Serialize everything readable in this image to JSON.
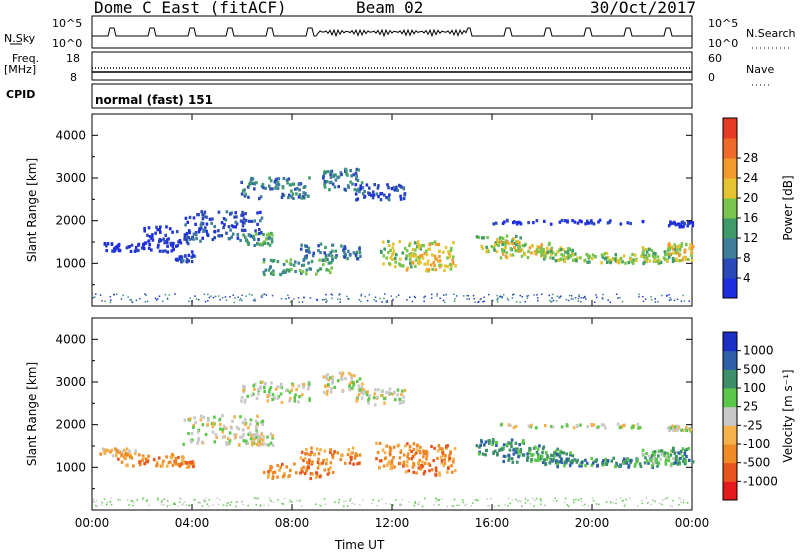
{
  "header": {
    "station": "Dome C East (fitACF)",
    "beam": "Beam 02",
    "date": "30/Oct/2017"
  },
  "top_panels": {
    "nsky_label": "N.Sky",
    "nsky_ticks": [
      "10^5",
      "10^0"
    ],
    "nsearch_label": "N.Search",
    "nsearch_ticks": [
      "10^5",
      "10^0"
    ],
    "freq_label": "Freq.",
    "freq_unit": "[MHz]",
    "freq_ticks": [
      "18",
      "8"
    ],
    "nave_label": "Nave",
    "nave_ticks": [
      "60",
      "0"
    ],
    "cpid_label": "CPID",
    "cpid_text": "normal (fast) 151"
  },
  "chart_data": [
    {
      "type": "heatmap",
      "name": "power",
      "ylabel": "Slant Range [km]",
      "yticks": [
        "1000",
        "2000",
        "3000",
        "4000"
      ],
      "ylim": [
        0,
        4500
      ],
      "xlim": [
        0,
        24
      ],
      "colorbar": {
        "label": "Power [dB]",
        "ticks": [
          "4",
          "8",
          "12",
          "16",
          "20",
          "24",
          "28"
        ],
        "colors": [
          "#1f2fe0",
          "#2a48b8",
          "#3e7e9a",
          "#3f9a6b",
          "#79c54b",
          "#e5c432",
          "#f29a2c",
          "#ee6a28",
          "#e63a22"
        ]
      },
      "blobs": [
        [
          1.2,
          1400,
          0.8,
          100,
          0
        ],
        [
          3.0,
          1600,
          1.0,
          300,
          0
        ],
        [
          3.7,
          1150,
          0.4,
          80,
          1
        ],
        [
          5.2,
          1900,
          1.6,
          350,
          1
        ],
        [
          6.6,
          1600,
          0.6,
          150,
          3
        ],
        [
          7.3,
          2800,
          1.4,
          250,
          2
        ],
        [
          8.2,
          950,
          1.4,
          180,
          3
        ],
        [
          9.5,
          1300,
          1.2,
          200,
          2
        ],
        [
          10.0,
          3000,
          0.8,
          250,
          2
        ],
        [
          11.5,
          2700,
          1.0,
          200,
          1
        ],
        [
          12.3,
          1250,
          0.8,
          300,
          4
        ],
        [
          13.5,
          1200,
          1.0,
          350,
          5
        ],
        [
          16.3,
          1500,
          1.0,
          200,
          4
        ],
        [
          17.5,
          1350,
          1.2,
          200,
          5
        ],
        [
          18.5,
          1250,
          0.8,
          150,
          4
        ],
        [
          20.0,
          1150,
          1.5,
          100,
          4
        ],
        [
          21.5,
          1150,
          1.2,
          120,
          4
        ],
        [
          22.7,
          1250,
          0.8,
          200,
          4
        ],
        [
          23.5,
          1300,
          0.5,
          200,
          5
        ],
        [
          19.0,
          2000,
          3.0,
          50,
          0
        ],
        [
          23.5,
          1950,
          0.5,
          60,
          0
        ]
      ]
    },
    {
      "type": "heatmap",
      "name": "velocity",
      "ylabel": "Slant Range [km]",
      "yticks": [
        "1000",
        "2000",
        "3000",
        "4000"
      ],
      "ylim": [
        0,
        4500
      ],
      "xlim": [
        0,
        24
      ],
      "xticks": [
        "00:00",
        "04:00",
        "08:00",
        "12:00",
        "16:00",
        "20:00",
        "00:00"
      ],
      "xlabel": "Time UT",
      "colorbar": {
        "label": "Velocity [m s⁻¹]",
        "ticks": [
          "-1000",
          "-500",
          "-100",
          "-25",
          "25",
          "100",
          "500",
          "1000"
        ],
        "colors": [
          "#e41a1c",
          "#e8541e",
          "#f08a24",
          "#f5b14a",
          "#c8c8c8",
          "#5cc84a",
          "#3d8f6a",
          "#2e5fa8",
          "#1c2fc4"
        ]
      },
      "blobs": [
        [
          1.0,
          1400,
          0.8,
          100,
          3
        ],
        [
          2.5,
          1200,
          1.5,
          150,
          2
        ],
        [
          3.7,
          1100,
          0.4,
          80,
          2
        ],
        [
          5.2,
          1900,
          1.6,
          350,
          4
        ],
        [
          6.6,
          1700,
          0.6,
          150,
          4
        ],
        [
          7.3,
          2800,
          1.4,
          250,
          4
        ],
        [
          8.2,
          950,
          1.4,
          180,
          2
        ],
        [
          9.5,
          1300,
          1.2,
          200,
          2
        ],
        [
          10.0,
          3000,
          0.8,
          250,
          4
        ],
        [
          11.5,
          2700,
          1.0,
          200,
          4
        ],
        [
          12.3,
          1300,
          1.0,
          300,
          2
        ],
        [
          13.5,
          1200,
          1.0,
          350,
          2
        ],
        [
          16.3,
          1500,
          1.0,
          200,
          6
        ],
        [
          17.5,
          1350,
          1.2,
          200,
          6
        ],
        [
          18.5,
          1250,
          0.8,
          150,
          6
        ],
        [
          20.0,
          1150,
          1.5,
          100,
          6
        ],
        [
          21.5,
          1150,
          1.2,
          120,
          6
        ],
        [
          22.7,
          1250,
          0.8,
          200,
          5
        ],
        [
          23.5,
          1300,
          0.5,
          200,
          6
        ],
        [
          19.0,
          2000,
          3.0,
          50,
          4
        ],
        [
          23.5,
          1950,
          0.5,
          60,
          4
        ]
      ]
    }
  ]
}
